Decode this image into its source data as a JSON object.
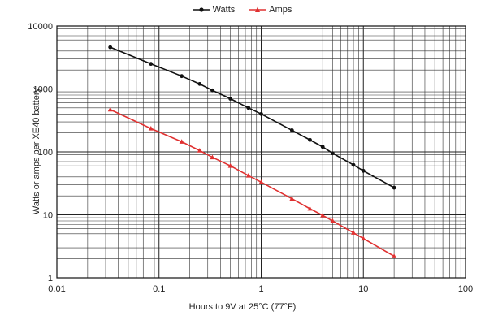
{
  "chart_data": {
    "type": "line",
    "xlabel": "Hours to 9V at 25°C (77°F)",
    "ylabel": "Watts or amps per XE40 battery",
    "xscale": "log",
    "yscale": "log",
    "xlim": [
      0.01,
      100
    ],
    "ylim": [
      1,
      10000
    ],
    "x_ticks": [
      "0.01",
      "0.1",
      "1",
      "10",
      "100"
    ],
    "y_ticks": [
      "1",
      "10",
      "100",
      "1000",
      "10000"
    ],
    "grid": true,
    "legend_position": "top-center",
    "series": [
      {
        "name": "Watts",
        "color": "#111111",
        "marker": "circle",
        "x": [
          0.0333,
          0.0833,
          0.1667,
          0.25,
          0.333,
          0.5,
          0.75,
          1,
          2,
          3,
          4,
          5,
          8,
          10,
          20
        ],
        "y": [
          4600,
          2500,
          1600,
          1200,
          950,
          700,
          500,
          400,
          220,
          155,
          120,
          95,
          62,
          50,
          27
        ]
      },
      {
        "name": "Amps",
        "color": "#e03030",
        "marker": "triangle",
        "x": [
          0.0333,
          0.0833,
          0.1667,
          0.25,
          0.333,
          0.5,
          0.75,
          1,
          2,
          3,
          4,
          5,
          8,
          10,
          20
        ],
        "y": [
          470,
          235,
          145,
          105,
          82,
          60,
          42,
          33,
          18,
          12.5,
          9.8,
          8,
          5.2,
          4.2,
          2.2
        ]
      }
    ]
  }
}
